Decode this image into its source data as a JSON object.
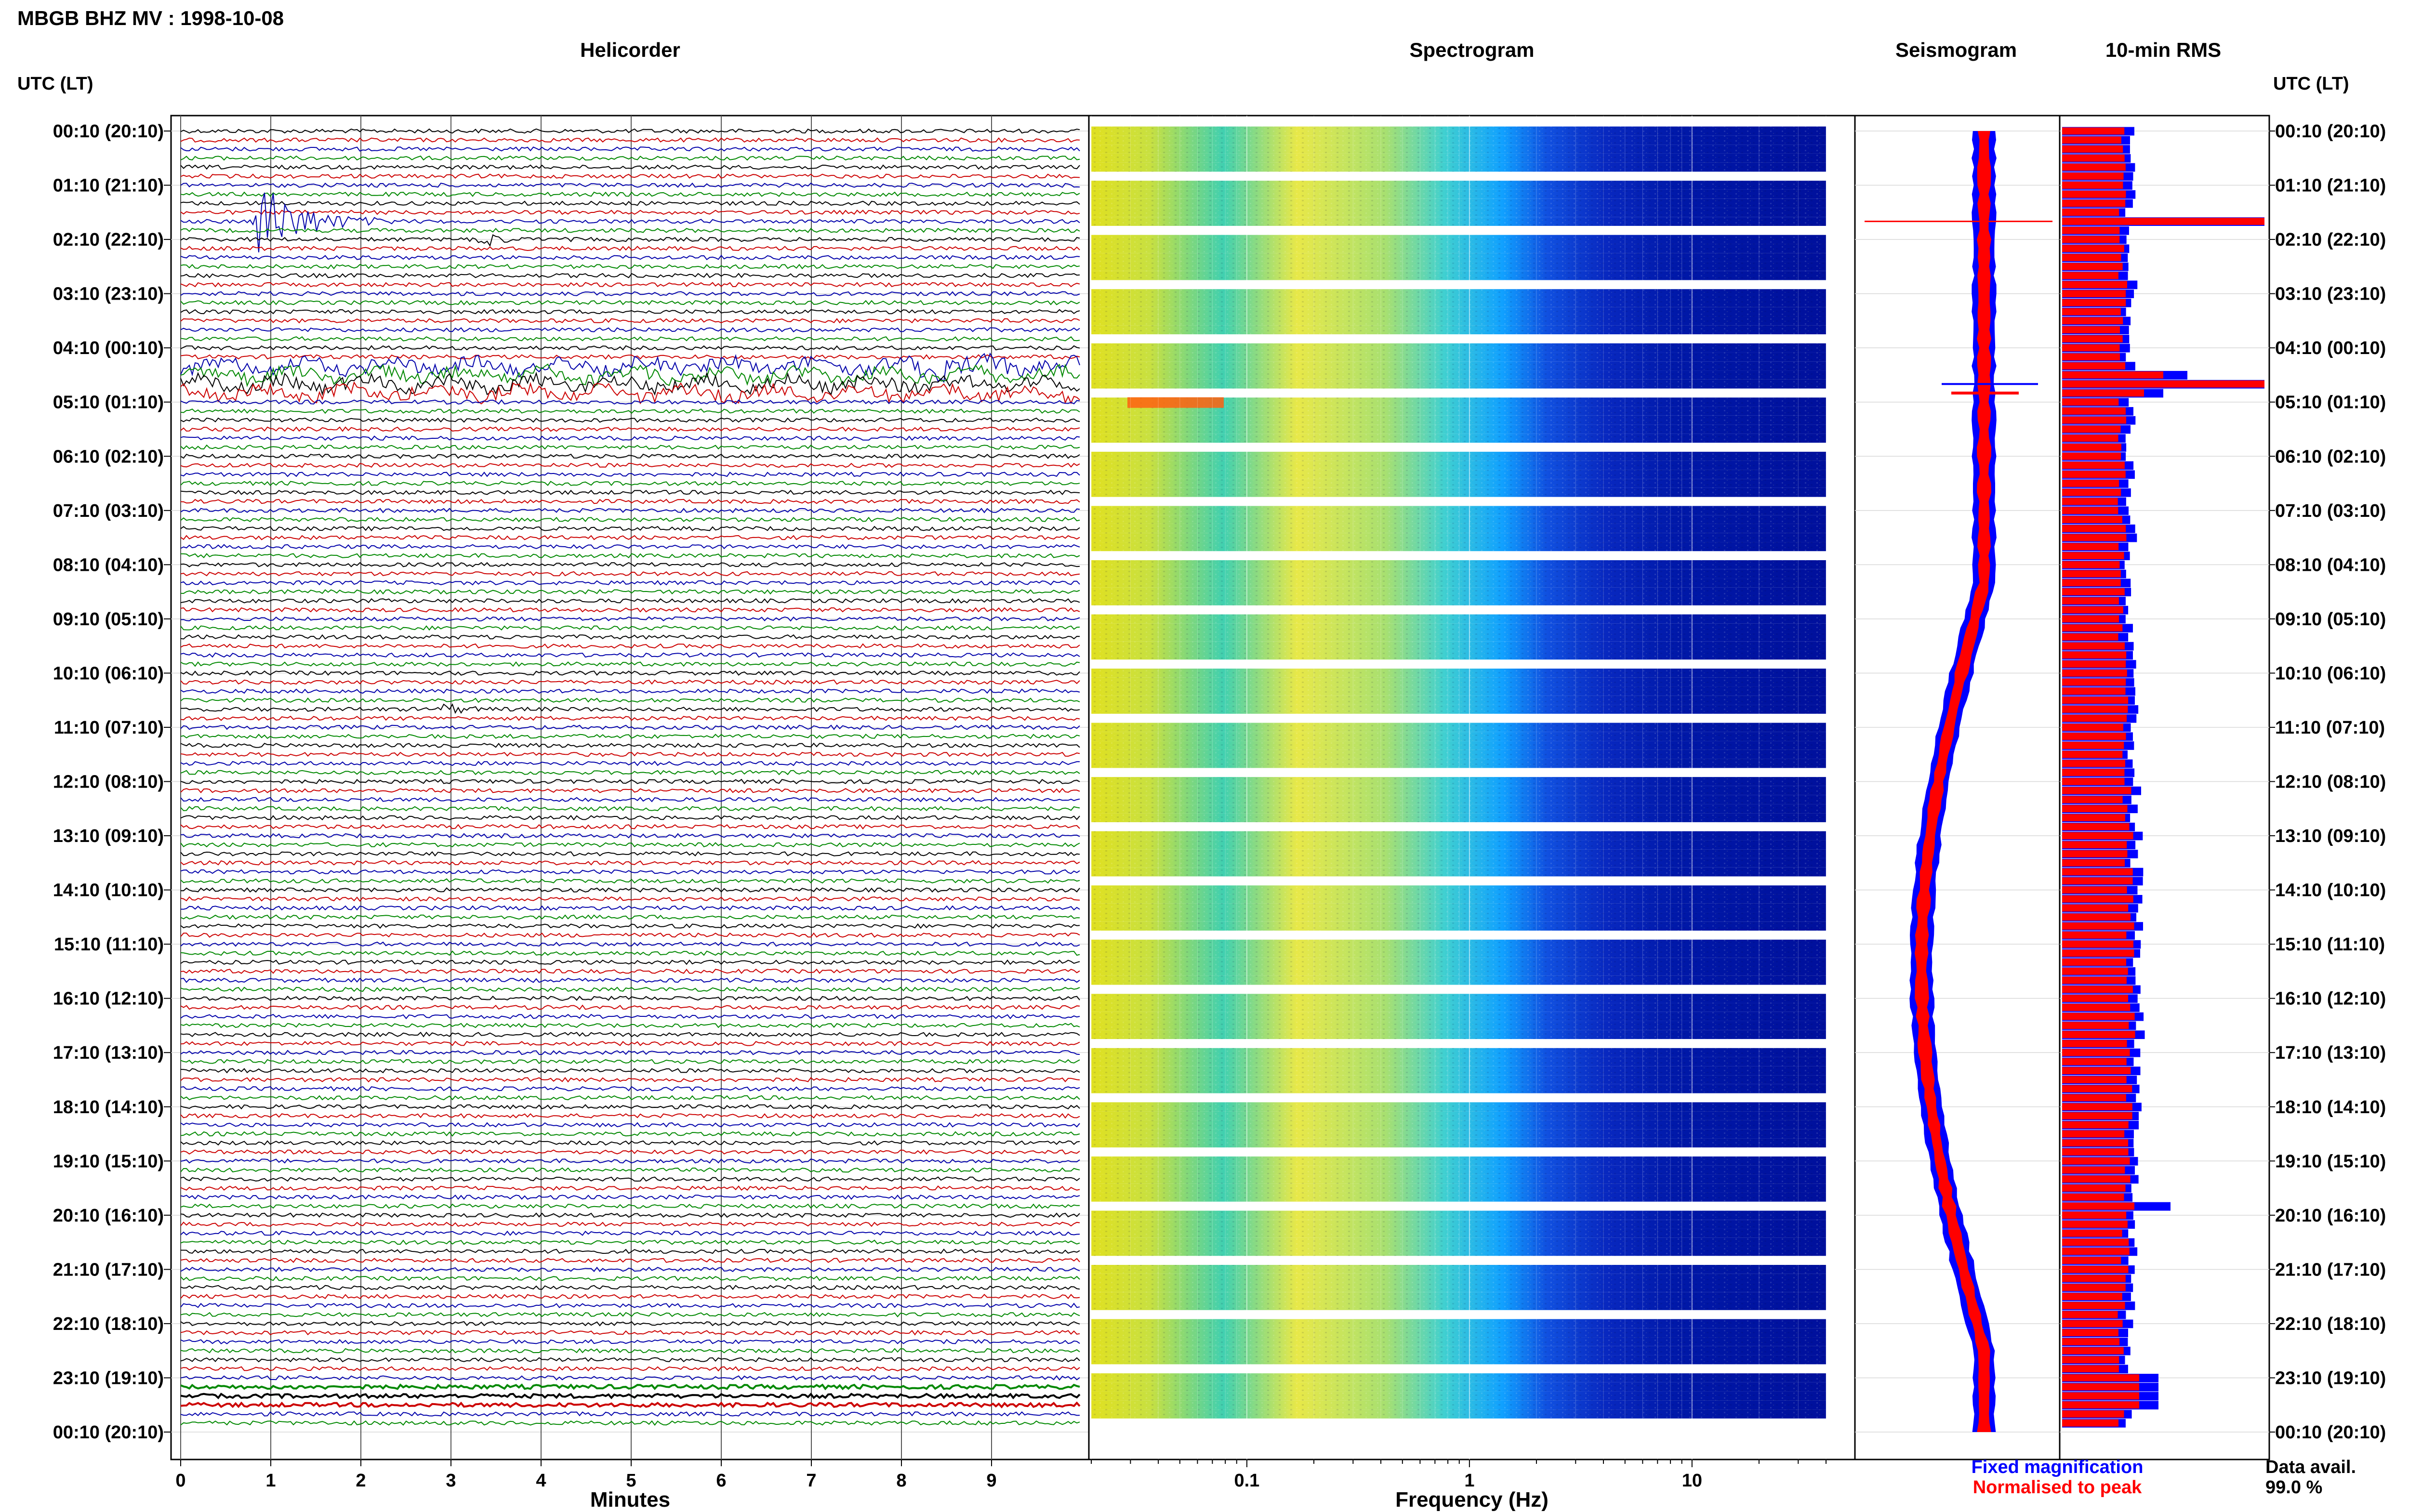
{
  "figure": {
    "title": "MBGB BHZ MV : 1998-10-08",
    "time_axis_label": "UTC (LT)",
    "data_availability_label": "Data avail.",
    "data_availability_value": "99.0 %"
  },
  "chart_data": [
    {
      "type": "line",
      "panel": "helicorder",
      "title": "Helicorder",
      "xlabel": "Minutes",
      "ylabel": "UTC (LT)",
      "xlim": [
        0,
        10
      ],
      "xticks": [
        "0",
        "1",
        "2",
        "3",
        "4",
        "5",
        "6",
        "7",
        "8",
        "9"
      ],
      "yticks": [
        "00:10 (20:10)",
        "01:10 (21:10)",
        "02:10 (22:10)",
        "03:10 (23:10)",
        "04:10 (00:10)",
        "05:10 (01:10)",
        "06:10 (02:10)",
        "07:10 (03:10)",
        "08:10 (04:10)",
        "09:10 (05:10)",
        "10:10 (06:10)",
        "11:10 (07:10)",
        "12:10 (08:10)",
        "13:10 (09:10)",
        "14:10 (10:10)",
        "15:10 (11:10)",
        "16:10 (12:10)",
        "17:10 (13:10)",
        "18:10 (14:10)",
        "19:10 (15:10)",
        "20:10 (16:10)",
        "21:10 (17:10)",
        "22:10 (18:10)",
        "23:10 (19:10)",
        "00:10 (20:10)"
      ],
      "traces_per_day": 144,
      "trace_colors": [
        "#000000",
        "#cc0000",
        "#0000aa",
        "#008800"
      ],
      "events": [
        {
          "trace": 10,
          "minute": 0.8,
          "duration_min": 1.6,
          "amplitude": "large"
        },
        {
          "trace": 12,
          "minute": 3.3,
          "duration_min": 0.5,
          "amplitude": "medium"
        },
        {
          "trace": 26,
          "minute": 7.9,
          "duration_min": 2.1,
          "amplitude": "medium"
        },
        {
          "trace": 64,
          "minute": 2.9,
          "duration_min": 0.6,
          "amplitude": "small"
        }
      ]
    },
    {
      "type": "heatmap",
      "panel": "spectrogram",
      "title": "Spectrogram",
      "xlabel": "Frequency (Hz)",
      "xscale": "log",
      "xlim": [
        0.02,
        40
      ],
      "xticks": [
        "0.1",
        "1",
        "10"
      ],
      "colormap": "jet"
    },
    {
      "type": "line",
      "panel": "seismogram",
      "title": "Seismogram",
      "series": [
        {
          "name": "Fixed magnification",
          "color": "#0000ff"
        },
        {
          "name": "Normalised to peak",
          "color": "#ff0000"
        }
      ]
    },
    {
      "type": "bar",
      "panel": "rms",
      "title": "10-min RMS",
      "series": [
        {
          "name": "Fixed magnification",
          "color": "#0000ff"
        },
        {
          "name": "Normalised to peak",
          "color": "#ff0000"
        }
      ]
    }
  ],
  "right_axis": {
    "label": "UTC (LT)",
    "yticks": [
      "00:10 (20:10)",
      "01:10 (21:10)",
      "02:10 (22:10)",
      "03:10 (23:10)",
      "04:10 (00:10)",
      "05:10 (01:10)",
      "06:10 (02:10)",
      "07:10 (03:10)",
      "08:10 (04:10)",
      "09:10 (05:10)",
      "10:10 (06:10)",
      "11:10 (07:10)",
      "12:10 (08:10)",
      "13:10 (09:10)",
      "14:10 (10:10)",
      "15:10 (11:10)",
      "16:10 (12:10)",
      "17:10 (13:10)",
      "18:10 (14:10)",
      "19:10 (15:10)",
      "20:10 (16:10)",
      "21:10 (17:10)",
      "22:10 (18:10)",
      "23:10 (19:10)",
      "00:10 (20:10)"
    ]
  },
  "legend": {
    "fixed_label": "Fixed magnification",
    "fixed_color": "#0000ff",
    "normalised_label": "Normalised to peak",
    "normalised_color": "#ff0000"
  }
}
